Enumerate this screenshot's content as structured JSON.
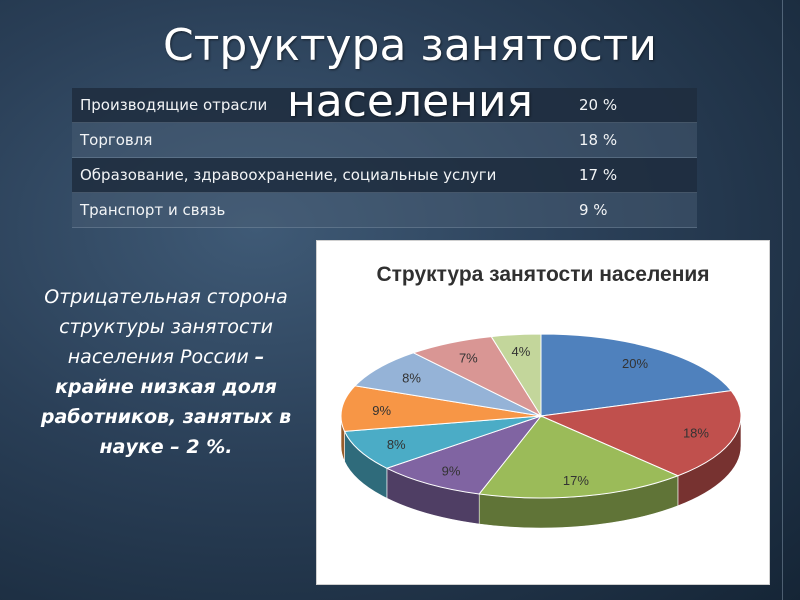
{
  "slide": {
    "title": "Структура занятости населения"
  },
  "table": {
    "rows": [
      {
        "label": "Производящие отрасли",
        "value": "20 %"
      },
      {
        "label": "Торговля",
        "value": "18 %"
      },
      {
        "label": "Образование, здравоохранение, социальные услуги",
        "value": "17 %"
      },
      {
        "label": "Транспорт и связь",
        "value": "9 %"
      }
    ]
  },
  "bullet": {
    "marker": "",
    "line_italic": "Отрицательная сторона структуры занятости населения России",
    "line_bold": "– крайне низкая доля работников, занятых в науке – 2 %."
  },
  "colors": {
    "background": "#2a3f57",
    "title_text": "#ffffff"
  },
  "chart_data": {
    "type": "pie",
    "three_d": true,
    "title": "Структура занятости населения",
    "legend": "none",
    "slices": [
      {
        "label": "20%",
        "value": 20,
        "color": "#4f81bd"
      },
      {
        "label": "18%",
        "value": 18,
        "color": "#c0504d"
      },
      {
        "label": "17%",
        "value": 17,
        "color": "#9bbb59"
      },
      {
        "label": "9%",
        "value": 9,
        "color": "#8064a2"
      },
      {
        "label": "8%",
        "value": 8,
        "color": "#4bacc6"
      },
      {
        "label": "9%",
        "value": 9,
        "color": "#f79646"
      },
      {
        "label": "8%",
        "value": 8,
        "color": "#95b3d7"
      },
      {
        "label": "7%",
        "value": 7,
        "color": "#d99694"
      },
      {
        "label": "4%",
        "value": 4,
        "color": "#c3d69b"
      }
    ]
  }
}
